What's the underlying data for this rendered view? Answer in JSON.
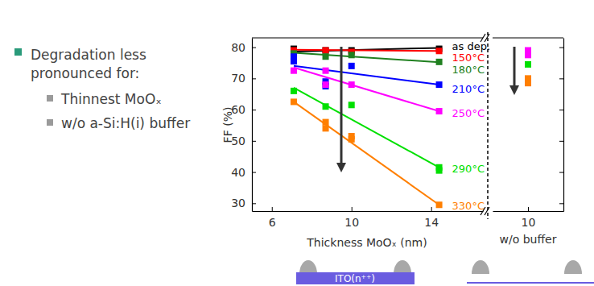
{
  "slide": {
    "bullet": [
      "Degradation less",
      "pronounced for:"
    ],
    "sub_bullets": [
      "Thinnest MoOₓ",
      "w/o a-Si:H(i) buffer"
    ]
  },
  "diagram": {
    "label": "ITO(n⁺⁺)"
  },
  "chart_data": [
    {
      "type": "scatter",
      "x_label": "Thickness MoOₓ (nm)",
      "y_label": "FF (%)",
      "xlim": [
        5,
        16.6
      ],
      "ylim": [
        27.5,
        83
      ],
      "xticks": [
        6,
        10,
        14
      ],
      "yticks": [
        30,
        40,
        50,
        60,
        70,
        80
      ],
      "grid": false,
      "marker": "square",
      "fit_x": [
        7.1,
        14.4
      ],
      "series": [
        {
          "name": "as dep.",
          "color": "#000000",
          "x": [
            7.1,
            8.7,
            10,
            14.4
          ],
          "values": [
            79.5,
            79,
            79,
            79.5
          ],
          "fit": [
            78.6,
            79.8
          ]
        },
        {
          "name": "150°C",
          "color": "#ff0000",
          "x": [
            7.1,
            8.7,
            10,
            14.4
          ],
          "values": [
            79,
            79,
            78.5,
            78.8
          ],
          "fit": [
            79.2,
            78.8
          ]
        },
        {
          "name": "180°C",
          "color": "#208020",
          "x": [
            7.1,
            8.7,
            10,
            14.4
          ],
          "values": [
            78,
            77,
            77.5,
            75.3
          ],
          "fit": [
            78.2,
            75.2
          ]
        },
        {
          "name": "210°C",
          "color": "#0000ff",
          "x": [
            7.1,
            7.1,
            8.7,
            8.7,
            10,
            14.4
          ],
          "values": [
            77,
            75.5,
            69,
            67.5,
            74,
            68
          ],
          "fit": [
            74,
            68
          ]
        },
        {
          "name": "250°C",
          "color": "#ff00ff",
          "x": [
            7.1,
            8.7,
            8.7,
            10,
            14.4
          ],
          "values": [
            72.5,
            72.5,
            68,
            68,
            59.5
          ],
          "fit": [
            73.5,
            59.5
          ]
        },
        {
          "name": "290°C",
          "color": "#00e000",
          "x": [
            7.1,
            8.7,
            10,
            14.4,
            14.4
          ],
          "values": [
            66,
            61,
            61.5,
            41.5,
            40.5
          ],
          "fit": [
            67,
            41.5
          ]
        },
        {
          "name": "330°C",
          "color": "#ff7f00",
          "x": [
            7.1,
            8.7,
            8.7,
            10,
            10,
            14.4
          ],
          "values": [
            62.5,
            56,
            54,
            51.5,
            50.5,
            29.5
          ],
          "fit": [
            62.5,
            29.5
          ]
        }
      ]
    },
    {
      "type": "scatter",
      "x_label": "w/o buffer",
      "xlim": [
        9,
        11
      ],
      "ylim": [
        27.5,
        83
      ],
      "xticks": [
        10
      ],
      "yticks": [
        30,
        40,
        50,
        60,
        70,
        80
      ],
      "tick_labels": "x",
      "marker": "square",
      "series": [
        {
          "color": "#ff00ff",
          "x": [
            10,
            10
          ],
          "values": [
            79,
            77.5
          ]
        },
        {
          "color": "#00e000",
          "x": [
            10
          ],
          "values": [
            74.5
          ]
        },
        {
          "color": "#ff7f00",
          "x": [
            10,
            10
          ],
          "values": [
            70,
            68.5
          ]
        }
      ]
    }
  ]
}
